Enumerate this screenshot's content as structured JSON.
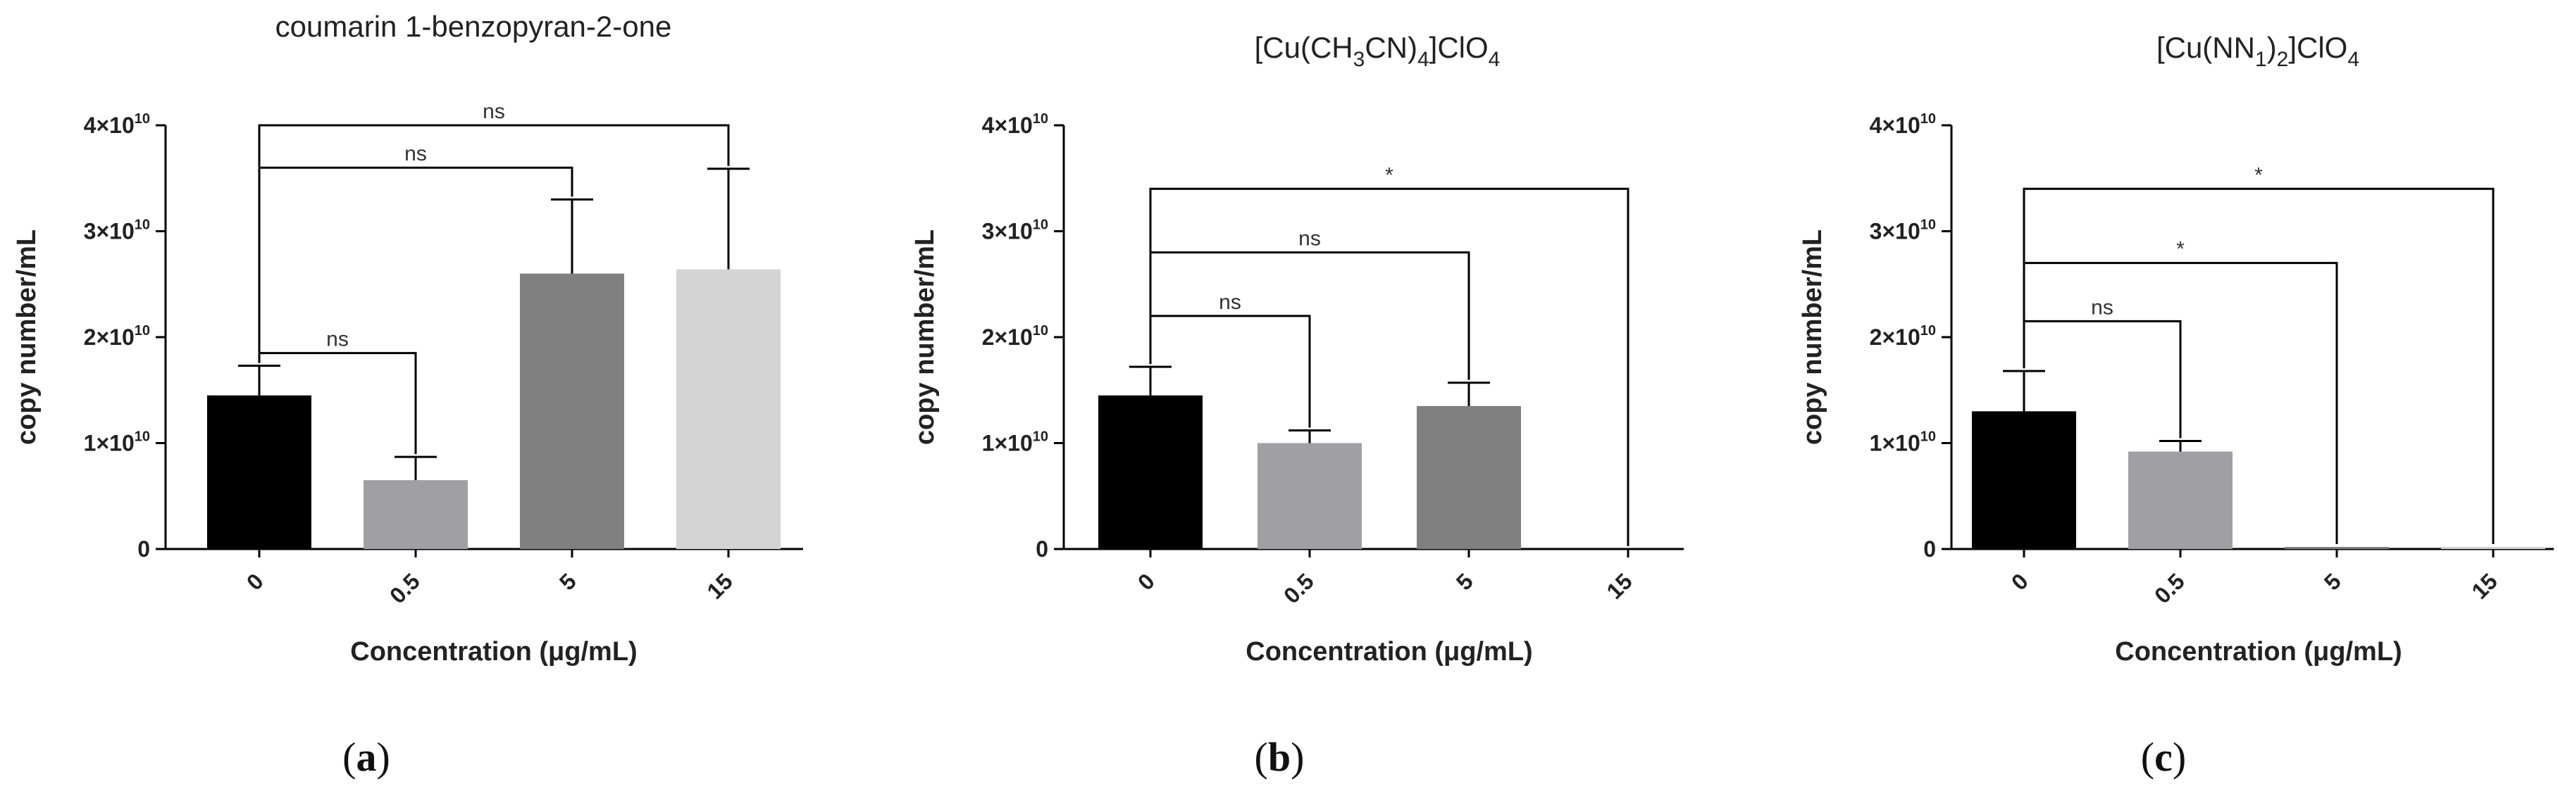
{
  "figure": {
    "xlabel": "Concentration (μg/mL)",
    "ylabel": "copy number/mL",
    "ytick_exponent": "10",
    "ytick_labels": [
      "0",
      "1×10",
      "2×10",
      "3×10",
      "4×10"
    ]
  },
  "chart_data": [
    {
      "type": "bar",
      "panel_label": "a",
      "title": "coumarin 1-benzopyran-2-one",
      "title_parts": [
        {
          "t": "coumarin 1-benzopyran-2-one",
          "sub": false
        }
      ],
      "categories": [
        "0",
        "0.5",
        "5",
        "15"
      ],
      "values": [
        14500000000.0,
        6500000000.0,
        26000000000.0,
        26400000000.0
      ],
      "errors": [
        2800000000.0,
        2200000000.0,
        7000000000.0,
        9500000000.0
      ],
      "colors": [
        "#000000",
        "#a0a0a4",
        "#808080",
        "#d4d4d4"
      ],
      "xlabel": "Concentration (μg/mL)",
      "ylabel": "copy number/mL",
      "ylim": [
        0,
        40000000000.0
      ],
      "yticks": [
        0,
        10000000000.0,
        20000000000.0,
        30000000000.0,
        40000000000.0
      ],
      "comparisons": [
        {
          "from": 0,
          "to": 1,
          "level": 18500000000.0,
          "label": "ns"
        },
        {
          "from": 0,
          "to": 2,
          "level": 36000000000.0,
          "label": "ns"
        },
        {
          "from": 0,
          "to": 3,
          "level": 40000000000.0,
          "label": "ns"
        }
      ]
    },
    {
      "type": "bar",
      "panel_label": "b",
      "title": "[Cu(CH3CN)4]ClO4",
      "title_parts": [
        {
          "t": "[Cu(CH",
          "sub": false
        },
        {
          "t": "3",
          "sub": true
        },
        {
          "t": "CN)",
          "sub": false
        },
        {
          "t": "4",
          "sub": true
        },
        {
          "t": "]ClO",
          "sub": false
        },
        {
          "t": "4",
          "sub": true
        }
      ],
      "categories": [
        "0",
        "0.5",
        "5",
        "15"
      ],
      "values": [
        14500000000.0,
        10000000000.0,
        13500000000.0,
        0.0
      ],
      "errors": [
        2700000000.0,
        1200000000.0,
        2200000000.0,
        0.0
      ],
      "colors": [
        "#000000",
        "#a0a0a4",
        "#808080",
        "#d4d4d4"
      ],
      "xlabel": "Concentration (μg/mL)",
      "ylabel": "copy number/mL",
      "ylim": [
        0,
        40000000000.0
      ],
      "yticks": [
        0,
        10000000000.0,
        20000000000.0,
        30000000000.0,
        40000000000.0
      ],
      "comparisons": [
        {
          "from": 0,
          "to": 1,
          "level": 22000000000.0,
          "label": "ns"
        },
        {
          "from": 0,
          "to": 2,
          "level": 28000000000.0,
          "label": "ns"
        },
        {
          "from": 0,
          "to": 3,
          "level": 34000000000.0,
          "label": "*"
        }
      ]
    },
    {
      "type": "bar",
      "panel_label": "c",
      "title": "[Cu(NN1)2]ClO4",
      "title_parts": [
        {
          "t": "[Cu(NN",
          "sub": false
        },
        {
          "t": "1",
          "sub": true
        },
        {
          "t": ")",
          "sub": false
        },
        {
          "t": "2",
          "sub": true
        },
        {
          "t": "]ClO",
          "sub": false
        },
        {
          "t": "4",
          "sub": true
        }
      ],
      "categories": [
        "0",
        "0.5",
        "5",
        "15"
      ],
      "values": [
        13000000000.0,
        9200000000.0,
        200000000.0,
        200000000.0
      ],
      "errors": [
        3800000000.0,
        1000000000.0,
        0.0,
        0.0
      ],
      "colors": [
        "#000000",
        "#a0a0a4",
        "#808080",
        "#d4d4d4"
      ],
      "xlabel": "Concentration (μg/mL)",
      "ylabel": "copy number/mL",
      "ylim": [
        0,
        40000000000.0
      ],
      "yticks": [
        0,
        10000000000.0,
        20000000000.0,
        30000000000.0,
        40000000000.0
      ],
      "comparisons": [
        {
          "from": 0,
          "to": 1,
          "level": 21500000000.0,
          "label": "ns"
        },
        {
          "from": 0,
          "to": 2,
          "level": 27000000000.0,
          "label": "*"
        },
        {
          "from": 0,
          "to": 3,
          "level": 34000000000.0,
          "label": "*"
        }
      ]
    }
  ]
}
